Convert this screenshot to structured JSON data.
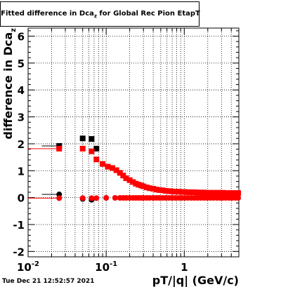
{
  "header": {
    "title_main": "Fitted difference in Dca",
    "title_sub": "z",
    "title_rest": " for Global Rec Pion EtapT"
  },
  "footer": {
    "timestamp": "Tue Dec 21 12:52:57 2021"
  },
  "colors": {
    "series_black": "#000000",
    "series_red": "#ff0000",
    "frame": "#000000",
    "grid": "#000000"
  },
  "chart_data": {
    "type": "scatter",
    "xscale": "log",
    "xlim": [
      0.01,
      5.0
    ],
    "ylim": [
      -2.2,
      6.3
    ],
    "grid": true,
    "xlabel": "pT/|q| (GeV/c)",
    "ylabel_main": "difference in Dca",
    "ylabel_sub": "z",
    "xticks": [
      {
        "v": 0.01,
        "base": "10",
        "exp": "-2"
      },
      {
        "v": 0.1,
        "base": "10",
        "exp": "-1"
      },
      {
        "v": 1,
        "base": "1",
        "exp": ""
      }
    ],
    "yticks": [
      -2,
      -1,
      0,
      1,
      2,
      3,
      4,
      5,
      6
    ],
    "series": [
      {
        "color": "#000000",
        "marker": "square",
        "x": [
          0.025,
          0.05,
          0.065,
          0.075
        ],
        "y": [
          1.92,
          2.2,
          2.18,
          1.82
        ],
        "xerr_low": [
          0.01,
          0.0,
          0.0,
          0.0
        ],
        "xerr_high": [
          0.0,
          0.0,
          0.0,
          0.0
        ]
      },
      {
        "color": "#000000",
        "marker": "circle",
        "x": [
          0.025,
          0.05,
          0.065
        ],
        "y": [
          0.12,
          -0.05,
          -0.08
        ],
        "xerr_low": [
          0.01,
          0.0,
          0.0
        ],
        "xerr_high": [
          0.0,
          0.0,
          0.0
        ]
      },
      {
        "color": "#ff0000",
        "marker": "square",
        "x": [
          0.025,
          0.05,
          0.065,
          0.075,
          0.09,
          0.105,
          0.12,
          0.135,
          0.15,
          0.165,
          0.18,
          0.2,
          0.22,
          0.24,
          0.26,
          0.28,
          0.3,
          0.33,
          0.36,
          0.4,
          0.44,
          0.48,
          0.53,
          0.58,
          0.64,
          0.7,
          0.77,
          0.85,
          0.93,
          1.02,
          1.12,
          1.23,
          1.35,
          1.48,
          1.62,
          1.78,
          1.95,
          2.15,
          2.35,
          2.6,
          2.85,
          3.1,
          3.4,
          3.75,
          4.1,
          4.5,
          4.9
        ],
        "y": [
          1.82,
          1.82,
          1.72,
          1.42,
          1.25,
          1.15,
          1.1,
          1.02,
          0.92,
          0.82,
          0.72,
          0.65,
          0.58,
          0.52,
          0.48,
          0.45,
          0.42,
          0.38,
          0.35,
          0.33,
          0.3,
          0.28,
          0.27,
          0.25,
          0.24,
          0.23,
          0.22,
          0.22,
          0.21,
          0.21,
          0.2,
          0.2,
          0.2,
          0.19,
          0.19,
          0.19,
          0.18,
          0.18,
          0.18,
          0.18,
          0.18,
          0.18,
          0.17,
          0.17,
          0.17,
          0.17,
          0.17
        ],
        "xerr_low": [
          0.015,
          0.0,
          0.0,
          0.0,
          0.0,
          0.0,
          0.0,
          0.0,
          0.0,
          0.0,
          0.0,
          0.0,
          0.0,
          0.0,
          0.0,
          0.0,
          0.0,
          0.0,
          0.0,
          0.0,
          0.0,
          0.0,
          0.0,
          0.0,
          0.0,
          0.0,
          0.0,
          0.0,
          0.0,
          0.0,
          0.0,
          0.0,
          0.0,
          0.0,
          0.0,
          0.0,
          0.0,
          0.0,
          0.0,
          0.0,
          0.0,
          0.0,
          0.0,
          0.0,
          0.0,
          0.0,
          0.0
        ],
        "xerr_high": [
          0.0,
          0.0,
          0.0,
          0.0,
          0.0,
          0.0,
          0.0,
          0.0,
          0.0,
          0.0,
          0.0,
          0.0,
          0.0,
          0.0,
          0.0,
          0.0,
          0.0,
          0.0,
          0.0,
          0.0,
          0.0,
          0.0,
          0.0,
          0.0,
          0.0,
          0.0,
          0.0,
          0.0,
          0.0,
          0.0,
          0.0,
          0.0,
          0.0,
          0.0,
          0.0,
          0.0,
          0.0,
          0.0,
          0.0,
          0.0,
          0.0,
          0.0,
          0.0,
          0.0,
          0.0,
          0.0,
          0.0
        ]
      },
      {
        "color": "#ff0000",
        "marker": "circle",
        "x": [
          0.025,
          0.05,
          0.065,
          0.075,
          0.1,
          0.13,
          0.15,
          0.165,
          0.18,
          0.2,
          0.22,
          0.24,
          0.26,
          0.28,
          0.3,
          0.33,
          0.36,
          0.4,
          0.44,
          0.48,
          0.53,
          0.58,
          0.64,
          0.7,
          0.77,
          0.85,
          0.93,
          1.02,
          1.12,
          1.23,
          1.35,
          1.48,
          1.62,
          1.78,
          1.95,
          2.15,
          2.35,
          2.6,
          2.85,
          3.1,
          3.4,
          3.75,
          4.1,
          4.5,
          4.9
        ],
        "y": [
          -0.02,
          -0.02,
          -0.02,
          -0.02,
          -0.01,
          -0.01,
          -0.01,
          -0.01,
          -0.01,
          -0.01,
          -0.01,
          -0.01,
          -0.01,
          -0.01,
          -0.01,
          -0.01,
          -0.01,
          -0.01,
          -0.01,
          -0.01,
          -0.01,
          -0.01,
          -0.01,
          -0.01,
          -0.01,
          -0.01,
          -0.01,
          -0.01,
          -0.01,
          -0.01,
          -0.01,
          -0.01,
          -0.01,
          -0.01,
          -0.01,
          -0.01,
          -0.01,
          -0.01,
          -0.01,
          -0.01,
          -0.01,
          -0.01,
          -0.01,
          -0.01,
          -0.01
        ],
        "xerr_low": [
          0.015,
          0.0,
          0.0,
          0.0,
          0.0,
          0.0,
          0.0,
          0.0,
          0.0,
          0.0,
          0.0,
          0.0,
          0.0,
          0.0,
          0.0,
          0.0,
          0.0,
          0.0,
          0.0,
          0.0,
          0.0,
          0.0,
          0.0,
          0.0,
          0.0,
          0.0,
          0.0,
          0.0,
          0.0,
          0.0,
          0.0,
          0.0,
          0.0,
          0.0,
          0.0,
          0.0,
          0.0,
          0.0,
          0.0,
          0.0,
          0.0,
          0.0,
          0.0,
          0.0,
          0.0
        ],
        "xerr_high": [
          0.0,
          0.0,
          0.0,
          0.0,
          0.0,
          0.0,
          0.0,
          0.0,
          0.0,
          0.0,
          0.0,
          0.0,
          0.0,
          0.0,
          0.0,
          0.0,
          0.0,
          0.0,
          0.0,
          0.0,
          0.0,
          0.0,
          0.0,
          0.0,
          0.0,
          0.0,
          0.0,
          0.0,
          0.0,
          0.0,
          0.0,
          0.0,
          0.0,
          0.0,
          0.0,
          0.0,
          0.0,
          0.0,
          0.0,
          0.0,
          0.0,
          0.0,
          0.0,
          0.0,
          0.0
        ]
      }
    ]
  }
}
